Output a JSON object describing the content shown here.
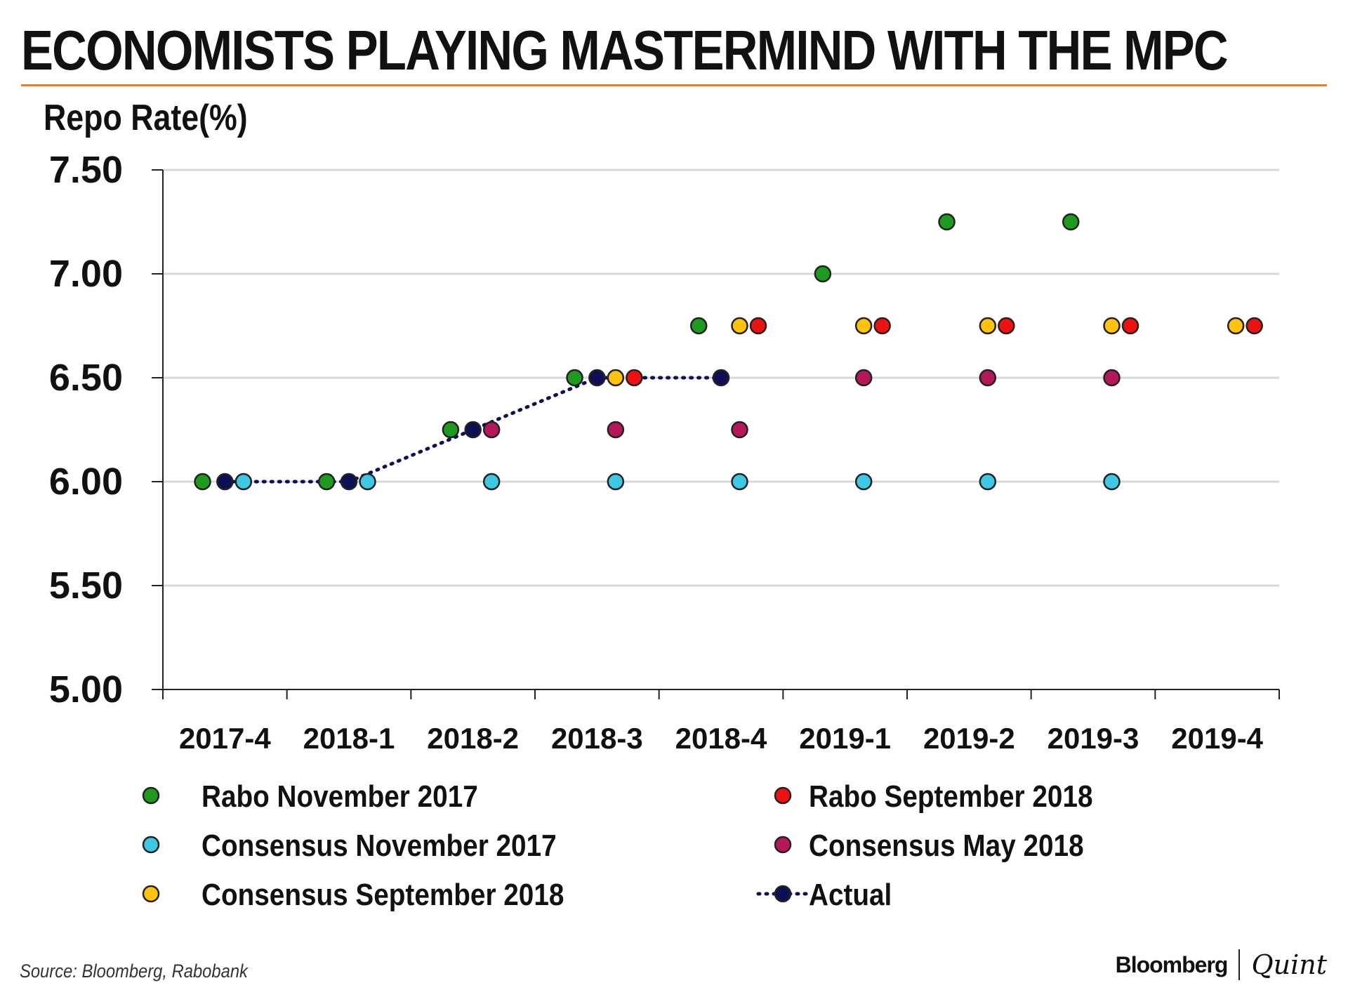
{
  "header": {
    "title": "ECONOMISTS PLAYING MASTERMIND WITH THE MPC",
    "rule_color": "#f07c22"
  },
  "footer": {
    "source": "Source: Bloomberg, Rabobank",
    "brand_primary": "Bloomberg",
    "brand_secondary": "Quint"
  },
  "chart_data": {
    "type": "scatter",
    "title": "ECONOMISTS PLAYING MASTERMIND WITH THE MPC",
    "ylabel": "Repo Rate(%)",
    "xlabel": "",
    "ylim": [
      5.0,
      7.5
    ],
    "yticks": [
      "7.50",
      "7.00",
      "6.50",
      "6.00",
      "5.50",
      "5.00"
    ],
    "yticks_values": [
      7.5,
      7.0,
      6.5,
      6.0,
      5.5,
      5.0
    ],
    "categories": [
      "2017-4",
      "2018-1",
      "2018-2",
      "2018-3",
      "2018-4",
      "2019-1",
      "2019-2",
      "2019-3",
      "2019-4"
    ],
    "grid": true,
    "legend_position": "bottom",
    "series": [
      {
        "name": "Rabo November 2017",
        "color": "#1e9a1e",
        "offset": -0.18,
        "values": [
          6.0,
          6.0,
          6.25,
          6.5,
          6.75,
          7.0,
          7.25,
          7.25,
          null
        ]
      },
      {
        "name": "Consensus November 2017",
        "color": "#3fc8e4",
        "offset": 0.15,
        "values": [
          6.0,
          6.0,
          6.0,
          6.0,
          6.0,
          6.0,
          6.0,
          6.0,
          null
        ]
      },
      {
        "name": "Consensus September 2018",
        "color": "#ffc20e",
        "offset": 0.15,
        "values": [
          null,
          null,
          null,
          6.5,
          6.75,
          6.75,
          6.75,
          6.75,
          6.75
        ]
      },
      {
        "name": "Rabo September 2018",
        "color": "#ee1111",
        "offset": 0.3,
        "values": [
          null,
          null,
          null,
          6.5,
          6.75,
          6.75,
          6.75,
          6.75,
          6.75
        ]
      },
      {
        "name": "Consensus May 2018",
        "color": "#b5185a",
        "offset": 0.15,
        "values": [
          null,
          null,
          6.25,
          6.25,
          6.25,
          6.5,
          6.5,
          6.5,
          null
        ]
      },
      {
        "name": "Actual",
        "color": "#0f0f55",
        "offset": 0.0,
        "line": "dotted",
        "values": [
          6.0,
          6.0,
          6.25,
          6.5,
          6.5,
          null,
          null,
          null,
          null
        ]
      }
    ],
    "legend": [
      {
        "name": "Rabo November 2017",
        "color": "#1e9a1e",
        "marker": "dot"
      },
      {
        "name": "Rabo September 2018",
        "color": "#ee1111",
        "marker": "dot"
      },
      {
        "name": "Consensus November 2017",
        "color": "#3fc8e4",
        "marker": "dot"
      },
      {
        "name": "Consensus May 2018",
        "color": "#b5185a",
        "marker": "dot"
      },
      {
        "name": "Consensus September 2018",
        "color": "#ffc20e",
        "marker": "dot"
      },
      {
        "name": "Actual",
        "color": "#0f0f55",
        "marker": "line-dot"
      }
    ]
  }
}
